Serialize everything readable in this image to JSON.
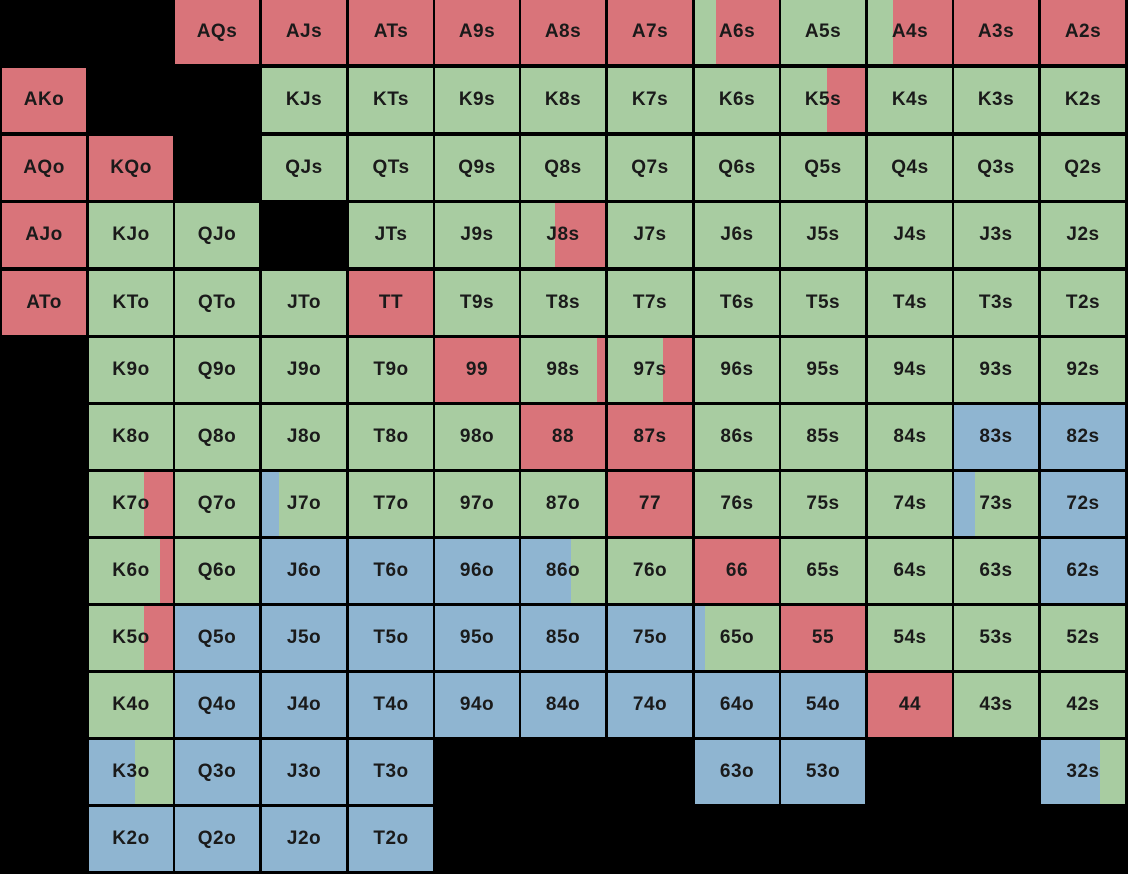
{
  "colors": {
    "raise": "#d9747a",
    "call": "#a8cca1",
    "fold": "#8fb5d1"
  },
  "rows": [
    [
      null,
      null,
      "AQs",
      "AJs",
      "ATs",
      "A9s",
      "A8s",
      "A7s",
      "A6s",
      "A5s",
      "A4s",
      "A3s",
      "A2s"
    ],
    [
      "AKo",
      null,
      null,
      "KJs",
      "KTs",
      "K9s",
      "K8s",
      "K7s",
      "K6s",
      "K5s",
      "K4s",
      "K3s",
      "K2s"
    ],
    [
      "AQo",
      "KQo",
      null,
      "QJs",
      "QTs",
      "Q9s",
      "Q8s",
      "Q7s",
      "Q6s",
      "Q5s",
      "Q4s",
      "Q3s",
      "Q2s"
    ],
    [
      "AJo",
      "KJo",
      "QJo",
      null,
      "JTs",
      "J9s",
      "J8s",
      "J7s",
      "J6s",
      "J5s",
      "J4s",
      "J3s",
      "J2s"
    ],
    [
      "ATo",
      "KTo",
      "QTo",
      "JTo",
      "TT",
      "T9s",
      "T8s",
      "T7s",
      "T6s",
      "T5s",
      "T4s",
      "T3s",
      "T2s"
    ],
    [
      null,
      "K9o",
      "Q9o",
      "J9o",
      "T9o",
      "99",
      "98s",
      "97s",
      "96s",
      "95s",
      "94s",
      "93s",
      "92s"
    ],
    [
      null,
      "K8o",
      "Q8o",
      "J8o",
      "T8o",
      "98o",
      "88",
      "87s",
      "86s",
      "85s",
      "84s",
      "83s",
      "82s"
    ],
    [
      null,
      "K7o",
      "Q7o",
      "J7o",
      "T7o",
      "97o",
      "87o",
      "77",
      "76s",
      "75s",
      "74s",
      "73s",
      "72s"
    ],
    [
      null,
      "K6o",
      "Q6o",
      "J6o",
      "T6o",
      "96o",
      "86o",
      "76o",
      "66",
      "65s",
      "64s",
      "63s",
      "62s"
    ],
    [
      null,
      "K5o",
      "Q5o",
      "J5o",
      "T5o",
      "95o",
      "85o",
      "75o",
      "65o",
      "55",
      "54s",
      "53s",
      "52s"
    ],
    [
      null,
      "K4o",
      "Q4o",
      "J4o",
      "T4o",
      "94o",
      "84o",
      "74o",
      "64o",
      "54o",
      "44",
      "43s",
      "42s"
    ],
    [
      null,
      "K3o",
      "Q3o",
      "J3o",
      "T3o",
      null,
      null,
      null,
      "63o",
      "53o",
      null,
      null,
      "32s"
    ],
    [
      null,
      "K2o",
      "Q2o",
      "J2o",
      "T2o",
      null,
      null,
      null,
      null,
      null,
      null,
      null,
      null
    ]
  ],
  "actions": {
    "AQs": "raise",
    "AJs": "raise",
    "ATs": "raise",
    "A9s": "raise",
    "A8s": "raise",
    "A7s": "raise",
    "A6s": "raise",
    "A5s": "call",
    "A4s": "raise",
    "A3s": "raise",
    "A2s": "raise",
    "AKo": "raise",
    "AQo": "raise",
    "KQo": "raise",
    "AJo": "raise",
    "ATo": "raise",
    "TT": "raise",
    "99": "raise",
    "88": "raise",
    "87s": "raise",
    "77": "raise",
    "66": "raise",
    "55": "raise",
    "44": "raise",
    "83s": "fold",
    "82s": "fold",
    "72s": "fold",
    "62s": "fold",
    "J6o": "fold",
    "T6o": "fold",
    "96o": "fold",
    "86o": "fold",
    "Q5o": "fold",
    "J5o": "fold",
    "T5o": "fold",
    "95o": "fold",
    "85o": "fold",
    "75o": "fold",
    "Q4o": "fold",
    "J4o": "fold",
    "T4o": "fold",
    "94o": "fold",
    "84o": "fold",
    "74o": "fold",
    "64o": "fold",
    "54o": "fold",
    "K3o": "fold",
    "Q3o": "fold",
    "J3o": "fold",
    "T3o": "fold",
    "63o": "fold",
    "53o": "fold",
    "K2o": "fold",
    "Q2o": "fold",
    "J2o": "fold",
    "T2o": "fold",
    "32s": "fold"
  },
  "mixed": {
    "A6s": {
      "color": "call",
      "side": "left",
      "frac": 0.25
    },
    "A4s": {
      "color": "call",
      "side": "left",
      "frac": 0.3
    },
    "K5s": {
      "color": "raise",
      "side": "right",
      "frac": 0.45
    },
    "J8s": {
      "color": "raise",
      "side": "right",
      "frac": 0.6
    },
    "98s": {
      "color": "raise",
      "side": "right",
      "frac": 0.1
    },
    "97s": {
      "color": "raise",
      "side": "right",
      "frac": 0.35
    },
    "K7o": {
      "color": "raise",
      "side": "right",
      "frac": 0.35
    },
    "K6o": {
      "color": "raise",
      "side": "right",
      "frac": 0.15
    },
    "K5o": {
      "color": "raise",
      "side": "right",
      "frac": 0.35
    },
    "J7o": {
      "color": "fold",
      "side": "left",
      "frac": 0.2
    },
    "73s": {
      "color": "fold",
      "side": "left",
      "frac": 0.25
    },
    "86o": {
      "color": "call",
      "side": "right",
      "frac": 0.4
    },
    "65o": {
      "color": "fold",
      "side": "left",
      "frac": 0.12
    },
    "K3o": {
      "color": "call",
      "side": "right",
      "frac": 0.45
    },
    "32s": {
      "color": "call",
      "side": "right",
      "frac": 0.3
    }
  }
}
